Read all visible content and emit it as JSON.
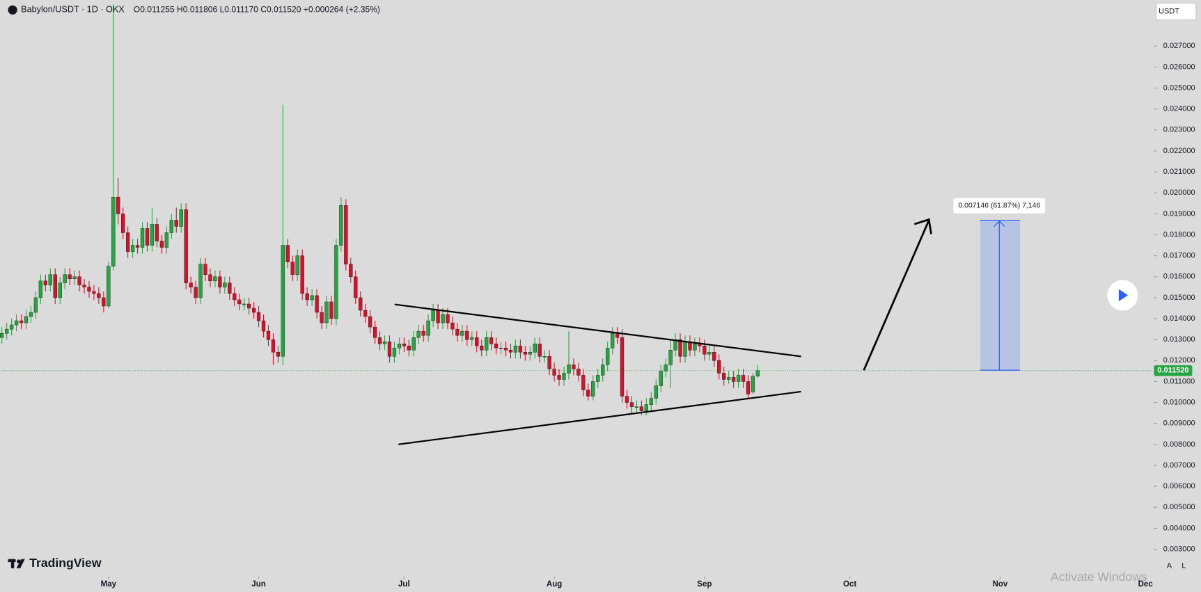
{
  "chart_data": {
    "type": "candlestick",
    "title": "Babylon/USDT · 1D · OKX",
    "ohlc_header": "O0.011255 H0.011806 L0.011170 C0.011520 +0.000264 (+2.35%)",
    "currency": "USDT",
    "measure_label": "0.007146 (61.87%) 7,146",
    "last_label": "0.011520",
    "brand": "TradingView",
    "watermark": "Activate Windows",
    "buttons": [
      "A",
      "L"
    ],
    "up_color": "#26a641",
    "down_color": "#d8102a",
    "grid": false,
    "xlim": [
      0,
      237
    ],
    "ylim": [
      0.0018,
      0.0292
    ],
    "xticks": [
      {
        "value": 22,
        "label": "May"
      },
      {
        "value": 53,
        "label": "Jun"
      },
      {
        "value": 83,
        "label": "Jul"
      },
      {
        "value": 114,
        "label": "Aug"
      },
      {
        "value": 145,
        "label": "Sep"
      },
      {
        "value": 175,
        "label": "Oct"
      },
      {
        "value": 206,
        "label": "Nov"
      },
      {
        "value": 236,
        "label": "Dec"
      }
    ],
    "yticks": [
      {
        "value": 0.003,
        "label": "0.003000"
      },
      {
        "value": 0.004,
        "label": "0.004000"
      },
      {
        "value": 0.005,
        "label": "0.005000"
      },
      {
        "value": 0.006,
        "label": "0.006000"
      },
      {
        "value": 0.007,
        "label": "0.007000"
      },
      {
        "value": 0.008,
        "label": "0.008000"
      },
      {
        "value": 0.009,
        "label": "0.009000"
      },
      {
        "value": 0.01,
        "label": "0.010000"
      },
      {
        "value": 0.011,
        "label": "0.011000"
      },
      {
        "value": 0.012,
        "label": "0.012000"
      },
      {
        "value": 0.013,
        "label": "0.013000"
      },
      {
        "value": 0.014,
        "label": "0.014000"
      },
      {
        "value": 0.015,
        "label": "0.015000"
      },
      {
        "value": 0.016,
        "label": "0.016000"
      },
      {
        "value": 0.017,
        "label": "0.017000"
      },
      {
        "value": 0.018,
        "label": "0.018000"
      },
      {
        "value": 0.019,
        "label": "0.019000"
      },
      {
        "value": 0.02,
        "label": "0.020000"
      },
      {
        "value": 0.021,
        "label": "0.021000"
      },
      {
        "value": 0.022,
        "label": "0.022000"
      },
      {
        "value": 0.023,
        "label": "0.023000"
      },
      {
        "value": 0.024,
        "label": "0.024000"
      },
      {
        "value": 0.025,
        "label": "0.025000"
      },
      {
        "value": 0.026,
        "label": "0.026000"
      },
      {
        "value": 0.027,
        "label": "0.027000"
      }
    ],
    "open": [
      0.0131,
      0.0133,
      0.0135,
      0.0137,
      0.0139,
      0.0138,
      0.0141,
      0.0143,
      0.015,
      0.0158,
      0.0156,
      0.0161,
      0.015,
      0.0157,
      0.0161,
      0.0159,
      0.016,
      0.0156,
      0.0155,
      0.0153,
      0.0152,
      0.015,
      0.0146,
      0.0165,
      0.0198,
      0.019,
      0.0181,
      0.0172,
      0.0175,
      0.0174,
      0.0183,
      0.0175,
      0.0185,
      0.0177,
      0.0174,
      0.0181,
      0.0187,
      0.0184,
      0.0192,
      0.0157,
      0.0155,
      0.015,
      0.0166,
      0.0161,
      0.0158,
      0.016,
      0.0155,
      0.0157,
      0.0152,
      0.0149,
      0.0147,
      0.0147,
      0.0145,
      0.0143,
      0.0139,
      0.0134,
      0.013,
      0.0124,
      0.0122,
      0.0175,
      0.0167,
      0.0161,
      0.017,
      0.0152,
      0.0149,
      0.0151,
      0.0143,
      0.0138,
      0.0148,
      0.014,
      0.0175,
      0.0194,
      0.0166,
      0.016,
      0.015,
      0.0144,
      0.0141,
      0.0136,
      0.0131,
      0.0128,
      0.0129,
      0.0122,
      0.0126,
      0.0128,
      0.0127,
      0.0125,
      0.0131,
      0.0134,
      0.0132,
      0.0139,
      0.0144,
      0.0138,
      0.0142,
      0.0138,
      0.0135,
      0.0132,
      0.0134,
      0.013,
      0.0131,
      0.0127,
      0.0125,
      0.0131,
      0.0128,
      0.0126,
      0.0126,
      0.0125,
      0.0124,
      0.0127,
      0.0124,
      0.0123,
      0.0124,
      0.0128,
      0.0122,
      0.0122,
      0.0116,
      0.0113,
      0.0111,
      0.0114,
      0.0118,
      0.0116,
      0.0113,
      0.0106,
      0.0103,
      0.011,
      0.0113,
      0.0118,
      0.0126,
      0.0133,
      0.0131,
      0.0103,
      0.01,
      0.0098,
      0.0098,
      0.0096,
      0.0099,
      0.0102,
      0.0108,
      0.0115,
      0.0118,
      0.0125,
      0.013,
      0.0122,
      0.0129,
      0.0125,
      0.0128,
      0.0127,
      0.0123,
      0.0124,
      0.012,
      0.0114,
      0.0111,
      0.0112,
      0.011,
      0.0113,
      0.011,
      0.0105,
      0.011255
    ],
    "high": [
      0.0136,
      0.0138,
      0.014,
      0.0142,
      0.0142,
      0.0144,
      0.0146,
      0.0153,
      0.0161,
      0.0161,
      0.0164,
      0.0164,
      0.016,
      0.0164,
      0.0164,
      0.0163,
      0.0163,
      0.0159,
      0.0158,
      0.0156,
      0.0155,
      0.0153,
      0.0167,
      0.029,
      0.0207,
      0.0193,
      0.0184,
      0.0178,
      0.0178,
      0.0186,
      0.0186,
      0.0193,
      0.0188,
      0.018,
      0.0184,
      0.019,
      0.0193,
      0.0195,
      0.0195,
      0.016,
      0.0158,
      0.0169,
      0.0169,
      0.0164,
      0.0163,
      0.0163,
      0.016,
      0.016,
      0.0155,
      0.0152,
      0.015,
      0.015,
      0.0148,
      0.0146,
      0.0142,
      0.0137,
      0.0133,
      0.0127,
      0.0242,
      0.0178,
      0.017,
      0.0173,
      0.0173,
      0.0155,
      0.0154,
      0.0154,
      0.0146,
      0.0151,
      0.0151,
      0.0178,
      0.0198,
      0.0197,
      0.0169,
      0.0163,
      0.0153,
      0.0147,
      0.0144,
      0.0139,
      0.0134,
      0.0132,
      0.0132,
      0.0129,
      0.0131,
      0.0131,
      0.013,
      0.0134,
      0.0137,
      0.0137,
      0.0142,
      0.0147,
      0.0147,
      0.0145,
      0.0145,
      0.0141,
      0.0138,
      0.0137,
      0.0137,
      0.0134,
      0.0134,
      0.013,
      0.0134,
      0.0134,
      0.0131,
      0.0129,
      0.0129,
      0.0128,
      0.013,
      0.013,
      0.0127,
      0.0127,
      0.0131,
      0.0131,
      0.0125,
      0.0125,
      0.0119,
      0.0116,
      0.0117,
      0.0134,
      0.0121,
      0.0119,
      0.0116,
      0.0109,
      0.0113,
      0.0116,
      0.0121,
      0.0129,
      0.0136,
      0.0136,
      0.0135,
      0.0106,
      0.0103,
      0.0101,
      0.0101,
      0.0102,
      0.0105,
      0.0111,
      0.0118,
      0.0121,
      0.013,
      0.0133,
      0.0133,
      0.0132,
      0.0132,
      0.0131,
      0.0131,
      0.013,
      0.0127,
      0.0127,
      0.0123,
      0.0117,
      0.0115,
      0.0115,
      0.0116,
      0.0116,
      0.0113,
      0.0114,
      0.011806
    ],
    "low": [
      0.0128,
      0.013,
      0.0132,
      0.0134,
      0.0135,
      0.0135,
      0.0138,
      0.014,
      0.0147,
      0.0153,
      0.0153,
      0.0147,
      0.0147,
      0.0154,
      0.0156,
      0.0156,
      0.0153,
      0.0152,
      0.015,
      0.0149,
      0.0147,
      0.0143,
      0.0145,
      0.0163,
      0.0185,
      0.0178,
      0.0169,
      0.0169,
      0.0171,
      0.0171,
      0.0172,
      0.0172,
      0.0174,
      0.0171,
      0.0171,
      0.0178,
      0.0181,
      0.0181,
      0.0154,
      0.0152,
      0.0147,
      0.0147,
      0.0158,
      0.0155,
      0.0155,
      0.0152,
      0.0152,
      0.0149,
      0.0146,
      0.0144,
      0.0144,
      0.0142,
      0.014,
      0.0136,
      0.0131,
      0.0127,
      0.0118,
      0.0119,
      0.0118,
      0.0164,
      0.0158,
      0.0158,
      0.0149,
      0.0146,
      0.0146,
      0.014,
      0.0135,
      0.0135,
      0.0137,
      0.0137,
      0.0172,
      0.0163,
      0.0157,
      0.0147,
      0.0141,
      0.0138,
      0.0133,
      0.0128,
      0.0125,
      0.0125,
      0.0119,
      0.0119,
      0.0123,
      0.0124,
      0.0122,
      0.0122,
      0.0128,
      0.0129,
      0.0129,
      0.0136,
      0.0135,
      0.0135,
      0.0135,
      0.0132,
      0.0129,
      0.0129,
      0.0127,
      0.0127,
      0.0124,
      0.0122,
      0.0122,
      0.0125,
      0.0123,
      0.0123,
      0.0122,
      0.0121,
      0.0121,
      0.0121,
      0.012,
      0.012,
      0.0121,
      0.0119,
      0.0119,
      0.0113,
      0.011,
      0.0108,
      0.0108,
      0.0111,
      0.0113,
      0.011,
      0.0103,
      0.0101,
      0.0101,
      0.0107,
      0.011,
      0.0115,
      0.0123,
      0.0128,
      0.01,
      0.0097,
      0.0095,
      0.0095,
      0.0094,
      0.0094,
      0.0096,
      0.0099,
      0.0105,
      0.0112,
      0.0107,
      0.0122,
      0.0119,
      0.0119,
      0.0122,
      0.0122,
      0.0124,
      0.012,
      0.012,
      0.0117,
      0.0111,
      0.0108,
      0.0109,
      0.0107,
      0.0107,
      0.0107,
      0.0102,
      0.0104,
      0.01117
    ],
    "close": [
      0.0133,
      0.0135,
      0.0137,
      0.0139,
      0.0138,
      0.0141,
      0.0143,
      0.015,
      0.0158,
      0.0156,
      0.0161,
      0.015,
      0.0157,
      0.0161,
      0.0159,
      0.016,
      0.0156,
      0.0155,
      0.0153,
      0.0152,
      0.015,
      0.0146,
      0.0165,
      0.0198,
      0.019,
      0.0181,
      0.0172,
      0.0175,
      0.0174,
      0.0183,
      0.0175,
      0.0185,
      0.0177,
      0.0174,
      0.0181,
      0.0187,
      0.0184,
      0.0192,
      0.0157,
      0.0155,
      0.015,
      0.0166,
      0.0161,
      0.0158,
      0.016,
      0.0155,
      0.0157,
      0.0152,
      0.0149,
      0.0147,
      0.0147,
      0.0145,
      0.0143,
      0.0139,
      0.0134,
      0.013,
      0.0124,
      0.0122,
      0.0175,
      0.0167,
      0.0161,
      0.017,
      0.0152,
      0.0149,
      0.0151,
      0.0143,
      0.0138,
      0.0148,
      0.014,
      0.0175,
      0.0194,
      0.0166,
      0.016,
      0.015,
      0.0144,
      0.0141,
      0.0136,
      0.0131,
      0.0128,
      0.0129,
      0.0122,
      0.0126,
      0.0128,
      0.0127,
      0.0125,
      0.0131,
      0.0134,
      0.0132,
      0.0139,
      0.0144,
      0.0138,
      0.0142,
      0.0138,
      0.0135,
      0.0132,
      0.0134,
      0.013,
      0.0131,
      0.0127,
      0.0125,
      0.0131,
      0.0128,
      0.0126,
      0.0126,
      0.0125,
      0.0124,
      0.0127,
      0.0124,
      0.0123,
      0.0124,
      0.0128,
      0.0122,
      0.0122,
      0.0116,
      0.0113,
      0.0111,
      0.0114,
      0.0118,
      0.0116,
      0.0113,
      0.0106,
      0.0103,
      0.011,
      0.0113,
      0.0118,
      0.0126,
      0.0133,
      0.0131,
      0.0103,
      0.01,
      0.0098,
      0.0098,
      0.0096,
      0.0099,
      0.0102,
      0.0108,
      0.0115,
      0.0118,
      0.0125,
      0.013,
      0.0122,
      0.0129,
      0.0125,
      0.0128,
      0.0127,
      0.0123,
      0.0124,
      0.012,
      0.0114,
      0.0111,
      0.0112,
      0.011,
      0.0113,
      0.011,
      0.0104,
      0.011255,
      0.01152
    ]
  }
}
